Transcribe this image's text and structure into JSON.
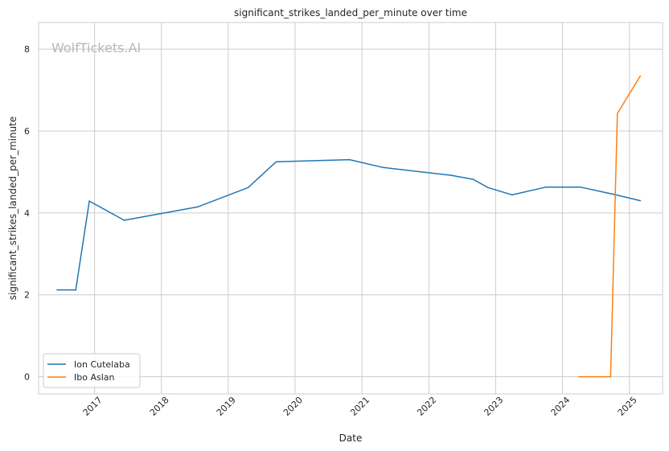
{
  "chart_data": {
    "type": "line",
    "title": "significant_strikes_landed_per_minute over time",
    "xlabel": "Date",
    "ylabel": "significant_strikes_landed_per_minute",
    "watermark": "WolfTickets.AI",
    "xlim": [
      "2016-03-01",
      "2025-07-01"
    ],
    "ylim": [
      -0.42,
      8.65
    ],
    "x_ticks": [
      "2017",
      "2018",
      "2019",
      "2020",
      "2021",
      "2022",
      "2023",
      "2024",
      "2025"
    ],
    "y_ticks": [
      0,
      2,
      4,
      6,
      8
    ],
    "grid": true,
    "legend": "bottom-left",
    "colors": {
      "Ion Cutelaba": "#1f77b4",
      "Ibo Aslan": "#ff7f0e"
    },
    "series": [
      {
        "name": "Ion Cutelaba",
        "points": [
          [
            "2016-06-10",
            2.12
          ],
          [
            "2016-09-20",
            2.12
          ],
          [
            "2016-12-03",
            4.29
          ],
          [
            "2017-06-12",
            3.82
          ],
          [
            "2018-07-20",
            4.15
          ],
          [
            "2019-04-20",
            4.62
          ],
          [
            "2019-09-20",
            5.25
          ],
          [
            "2020-10-25",
            5.3
          ],
          [
            "2021-04-25",
            5.11
          ],
          [
            "2022-05-01",
            4.92
          ],
          [
            "2022-09-01",
            4.82
          ],
          [
            "2022-11-20",
            4.62
          ],
          [
            "2023-04-01",
            4.44
          ],
          [
            "2023-10-01",
            4.63
          ],
          [
            "2024-04-10",
            4.63
          ],
          [
            "2024-10-10",
            4.45
          ],
          [
            "2025-03-01",
            4.3
          ]
        ]
      },
      {
        "name": "Ibo Aslan",
        "points": [
          [
            "2024-04-01",
            0.0
          ],
          [
            "2024-09-20",
            0.0
          ],
          [
            "2024-10-27",
            6.43
          ],
          [
            "2025-03-01",
            7.34
          ]
        ]
      }
    ]
  }
}
